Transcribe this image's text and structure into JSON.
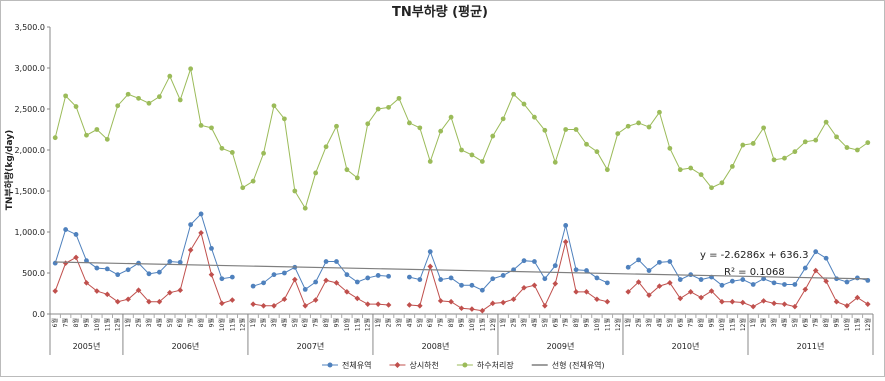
{
  "chart_data": {
    "type": "line",
    "title": "TN부하량 (평균)",
    "y_label": "TN부하량(kg/day)",
    "categories": [
      "6월",
      "7월",
      "8월",
      "9월",
      "10월",
      "11월",
      "12월",
      "1월",
      "2월",
      "3월",
      "4월",
      "5월",
      "6월",
      "7월",
      "8월",
      "9월",
      "10월",
      "11월",
      "12월",
      "1월",
      "2월",
      "3월",
      "4월",
      "5월",
      "6월",
      "7월",
      "8월",
      "9월",
      "10월",
      "11월",
      "12월",
      "1월",
      "2월",
      "3월",
      "4월",
      "5월",
      "6월",
      "7월",
      "8월",
      "9월",
      "10월",
      "11월",
      "12월",
      "1월",
      "2월",
      "3월",
      "4월",
      "5월",
      "6월",
      "7월",
      "8월",
      "9월",
      "10월",
      "11월",
      "12월",
      "1월",
      "2월",
      "3월",
      "4월",
      "5월",
      "6월",
      "7월",
      "8월",
      "9월",
      "10월",
      "11월",
      "12월",
      "1월",
      "2월",
      "3월",
      "4월",
      "5월",
      "6월",
      "7월",
      "8월",
      "9월",
      "10월",
      "11월",
      "12월"
    ],
    "x_groups": [
      "2005년",
      "2006년",
      "2007년",
      "2008년",
      "2009년",
      "2010년",
      "2011년"
    ],
    "ylim": [
      0,
      3500
    ],
    "yticks": [
      {
        "value": 0,
        "label": "0.0"
      },
      {
        "value": 500,
        "label": "500.0"
      },
      {
        "value": 1000,
        "label": "1,000.0"
      },
      {
        "value": 1500,
        "label": "1,500.0"
      },
      {
        "value": 2000,
        "label": "2,000.0"
      },
      {
        "value": 2500,
        "label": "2,500.0"
      },
      {
        "value": 3000,
        "label": "3,000.0"
      },
      {
        "value": 3500,
        "label": "3,500.0"
      }
    ],
    "series": [
      {
        "name": "전체유역",
        "color": "#4f81bd",
        "marker": "circle",
        "values": [
          620,
          1030,
          970,
          650,
          560,
          550,
          480,
          540,
          620,
          490,
          510,
          640,
          630,
          1090,
          1220,
          800,
          430,
          450,
          null,
          340,
          380,
          480,
          500,
          570,
          300,
          390,
          640,
          640,
          480,
          390,
          440,
          470,
          460,
          null,
          450,
          420,
          760,
          420,
          440,
          350,
          350,
          290,
          430,
          470,
          540,
          650,
          640,
          430,
          590,
          1080,
          540,
          530,
          440,
          380,
          null,
          570,
          660,
          530,
          630,
          640,
          420,
          480,
          420,
          450,
          350,
          400,
          420,
          360,
          430,
          380,
          360,
          360,
          560,
          760,
          680,
          430,
          390,
          440,
          410
        ]
      },
      {
        "name": "상시하천",
        "color": "#c0504d",
        "marker": "diamond",
        "values": [
          280,
          620,
          690,
          380,
          280,
          240,
          150,
          180,
          290,
          150,
          150,
          260,
          290,
          780,
          990,
          480,
          130,
          170,
          null,
          120,
          100,
          100,
          180,
          420,
          100,
          170,
          410,
          380,
          270,
          190,
          120,
          120,
          110,
          null,
          110,
          100,
          580,
          160,
          150,
          70,
          60,
          40,
          130,
          140,
          180,
          320,
          350,
          100,
          370,
          880,
          270,
          270,
          180,
          150,
          null,
          270,
          390,
          230,
          340,
          380,
          190,
          270,
          200,
          280,
          150,
          150,
          140,
          90,
          160,
          130,
          120,
          90,
          300,
          530,
          400,
          150,
          100,
          200,
          120
        ]
      },
      {
        "name": "하수처리장",
        "color": "#9bbb59",
        "marker": "circle",
        "values": [
          2150,
          2660,
          2530,
          2180,
          2250,
          2130,
          2540,
          2680,
          2630,
          2570,
          2650,
          2900,
          2610,
          2990,
          2300,
          2270,
          2020,
          1970,
          1540,
          1620,
          1960,
          2540,
          2380,
          1500,
          1290,
          1720,
          2040,
          2290,
          1760,
          1660,
          2320,
          2500,
          2520,
          2630,
          2330,
          2270,
          1860,
          2230,
          2400,
          2000,
          1940,
          1860,
          2170,
          2380,
          2680,
          2560,
          2400,
          2240,
          1850,
          2250,
          2250,
          2070,
          1980,
          1760,
          2200,
          2290,
          2330,
          2280,
          2460,
          2020,
          1760,
          1780,
          1700,
          1540,
          1600,
          1800,
          2060,
          2080,
          2270,
          1880,
          1900,
          1980,
          2100,
          2120,
          2340,
          2160,
          2030,
          2000,
          2090
        ]
      }
    ],
    "trendline": {
      "name": "선형 (전체유역)",
      "color": "#7f7f7f",
      "values": [
        633.7,
        428.6
      ]
    },
    "annotations": [
      "y = -2.6286x + 636.3",
      "R² = 0.1068"
    ]
  }
}
